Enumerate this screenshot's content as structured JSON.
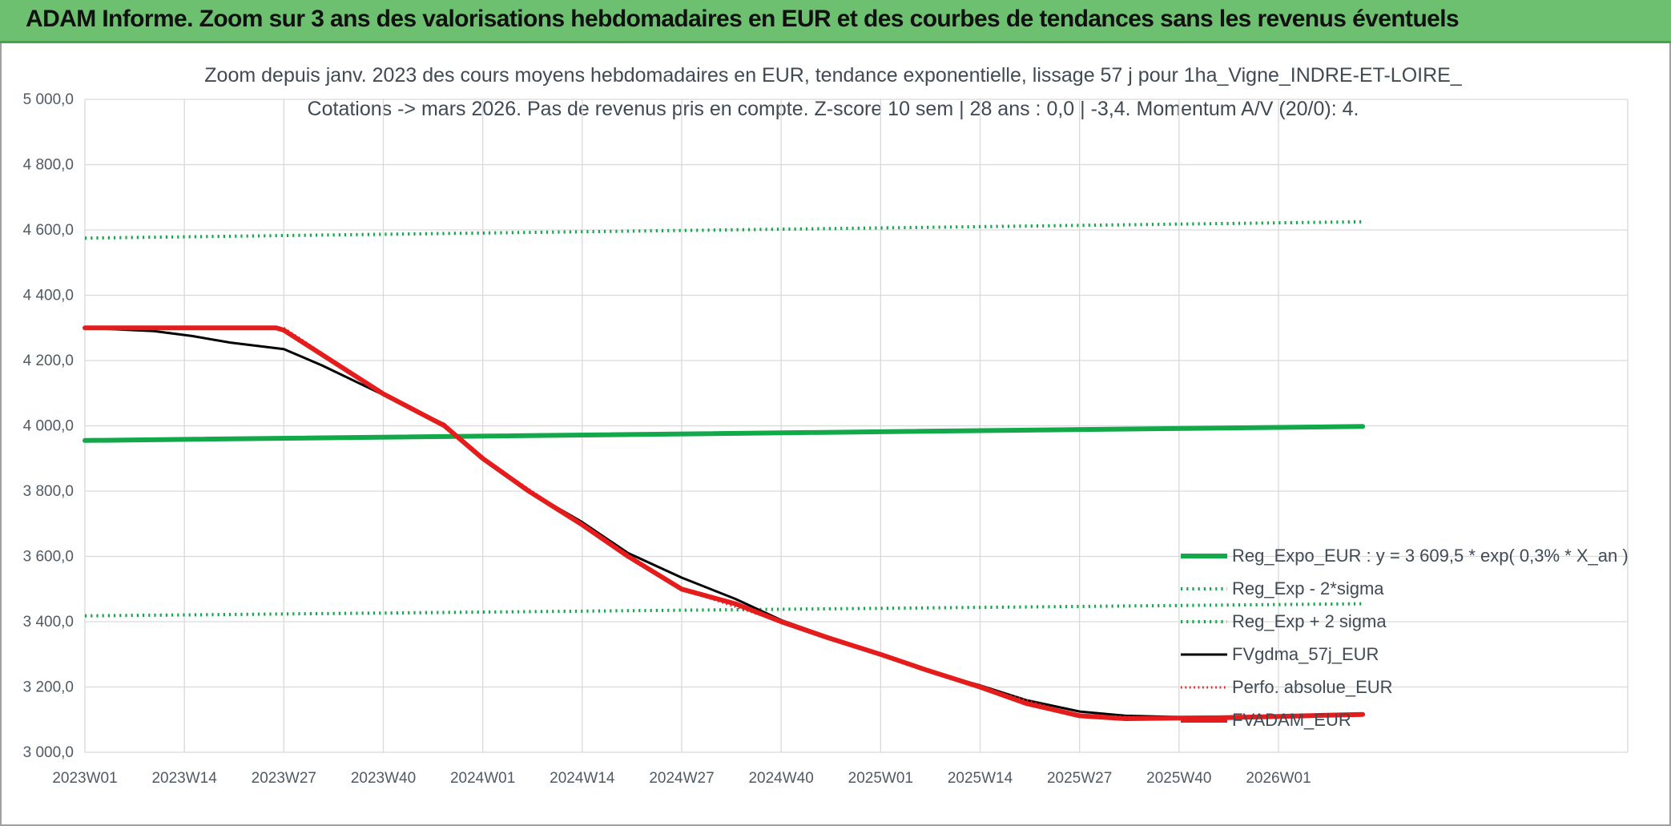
{
  "banner": {
    "title": "ADAM Informe. Zoom sur 3 ans des valorisations hebdomadaires en EUR et des courbes de tendances sans les revenus éventuels"
  },
  "colors": {
    "banner_bg": "#6cc070",
    "green": "#13a84a",
    "black": "#000000",
    "red": "#e51c1c"
  },
  "chart_data": {
    "type": "line",
    "title_line1": "Zoom depuis janv. 2023 des cours moyens hebdomadaires en EUR, tendance exponentielle, lissage 57 j pour 1ha_Vigne_INDRE-ET-LOIRE_",
    "title_line2": "Cotations -> mars 2026. Pas de revenus pris en compte. Z-score 10 sem | 28 ans : 0,0 | -3,4. Momentum A/V (20/0): 4.",
    "xlabel": "",
    "ylabel": "",
    "ylim": [
      3000,
      5000
    ],
    "y_ticks": [
      "5 000,0",
      "4 800,0",
      "4 600,0",
      "4 400,0",
      "4 200,0",
      "4 000,0",
      "3 800,0",
      "3 600,0",
      "3 400,0",
      "3 200,0",
      "3 000,0"
    ],
    "x_ticks": [
      "2023W01",
      "2023W14",
      "2023W27",
      "2023W40",
      "2024W01",
      "2024W14",
      "2024W27",
      "2024W40",
      "2025W01",
      "2025W14",
      "2025W27",
      "2025W40",
      "2026W01"
    ],
    "grid": true,
    "legend_position": "bottom-right",
    "series": [
      {
        "name": "Reg_Expo_EUR : y = 3 609,5 * exp( 0,3% *  X_an )",
        "color": "#13a84a",
        "style": "solid",
        "width": 6,
        "points": [
          [
            "2023W01",
            3955
          ],
          [
            "2026W12",
            3998
          ]
        ]
      },
      {
        "name": "Reg_Exp - 2*sigma",
        "color": "#13a84a",
        "style": "dotted",
        "width": 4,
        "points": [
          [
            "2023W01",
            3418
          ],
          [
            "2026W12",
            3455
          ]
        ]
      },
      {
        "name": "Reg_Exp + 2 sigma",
        "color": "#13a84a",
        "style": "dotted",
        "width": 4,
        "points": [
          [
            "2023W01",
            4575
          ],
          [
            "2026W12",
            4625
          ]
        ]
      },
      {
        "name": "FVgdma_57j_EUR",
        "color": "#000000",
        "style": "solid",
        "width": 3,
        "points": [
          [
            "2023W01",
            4300
          ],
          [
            "2023W10",
            4290
          ],
          [
            "2023W15",
            4275
          ],
          [
            "2023W20",
            4255
          ],
          [
            "2023W27",
            4235
          ],
          [
            "2023W32",
            4185
          ],
          [
            "2023W40",
            4095
          ],
          [
            "2023W48",
            4005
          ],
          [
            "2024W01",
            3898
          ],
          [
            "2024W07",
            3800
          ],
          [
            "2024W14",
            3705
          ],
          [
            "2024W20",
            3610
          ],
          [
            "2024W27",
            3535
          ],
          [
            "2024W34",
            3470
          ],
          [
            "2024W40",
            3405
          ],
          [
            "2024W46",
            3355
          ],
          [
            "2025W01",
            3300
          ],
          [
            "2025W07",
            3250
          ],
          [
            "2025W14",
            3205
          ],
          [
            "2025W20",
            3160
          ],
          [
            "2025W27",
            3125
          ],
          [
            "2025W33",
            3112
          ],
          [
            "2025W40",
            3108
          ],
          [
            "2025W46",
            3108
          ],
          [
            "2026W01",
            3110
          ],
          [
            "2026W12",
            3116
          ]
        ]
      },
      {
        "name": "Perfo. absolue_EUR",
        "color": "#e51c1c",
        "style": "dotted",
        "width": 3,
        "points": [
          [
            "2023W01",
            4300
          ],
          [
            "2023W27",
            4300
          ],
          [
            "2023W40",
            4098
          ],
          [
            "2023W48",
            4000
          ],
          [
            "2024W01",
            3900
          ],
          [
            "2024W14",
            3697
          ],
          [
            "2024W27",
            3500
          ],
          [
            "2024W40",
            3400
          ],
          [
            "2025W01",
            3300
          ],
          [
            "2025W14",
            3200
          ],
          [
            "2025W27",
            3112
          ],
          [
            "2025W40",
            3105
          ],
          [
            "2026W01",
            3110
          ],
          [
            "2026W12",
            3116
          ]
        ]
      },
      {
        "name": "FVADAM_EUR",
        "color": "#e51c1c",
        "style": "solid",
        "width": 6,
        "points": [
          [
            "2023W01",
            4300
          ],
          [
            "2023W26",
            4300
          ],
          [
            "2023W27",
            4293
          ],
          [
            "2023W40",
            4098
          ],
          [
            "2023W48",
            4000
          ],
          [
            "2024W01",
            3900
          ],
          [
            "2024W07",
            3800
          ],
          [
            "2024W14",
            3697
          ],
          [
            "2024W20",
            3600
          ],
          [
            "2024W27",
            3500
          ],
          [
            "2024W34",
            3455
          ],
          [
            "2024W40",
            3400
          ],
          [
            "2024W46",
            3352
          ],
          [
            "2025W01",
            3300
          ],
          [
            "2025W07",
            3252
          ],
          [
            "2025W14",
            3200
          ],
          [
            "2025W20",
            3150
          ],
          [
            "2025W27",
            3112
          ],
          [
            "2025W33",
            3103
          ],
          [
            "2025W40",
            3105
          ],
          [
            "2025W46",
            3106
          ],
          [
            "2026W01",
            3110
          ],
          [
            "2026W12",
            3116
          ]
        ]
      }
    ]
  }
}
